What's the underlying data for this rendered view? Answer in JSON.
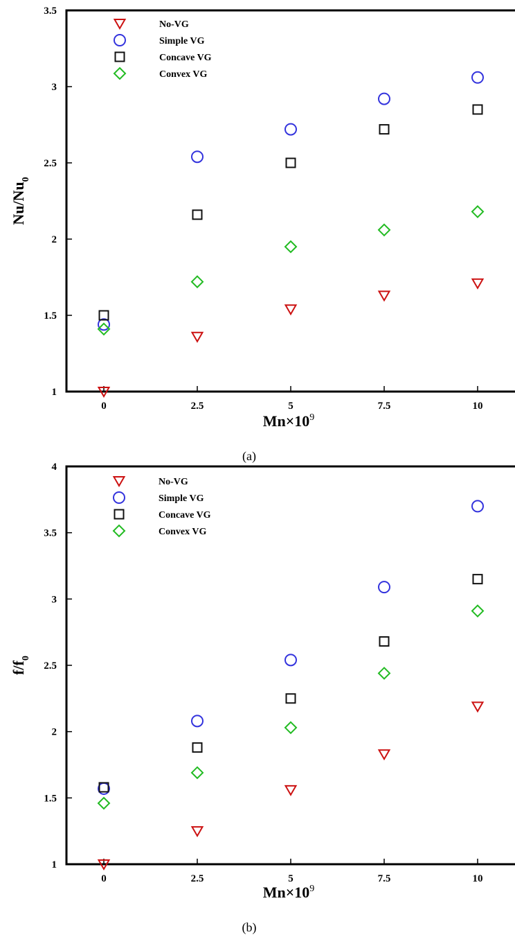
{
  "chart_data": [
    {
      "type": "scatter",
      "panel": "(a)",
      "xlabel_main": "Mn×10",
      "xlabel_sup": "9",
      "ylabel_main": "Nu/Nu",
      "ylabel_sub": "0",
      "xlim": [
        -1,
        11
      ],
      "ylim": [
        1,
        3.5
      ],
      "x_ticks": [
        0,
        2.5,
        5,
        7.5,
        10
      ],
      "x_tick_labels": [
        "0",
        "2.5",
        "5",
        "7.5",
        "10"
      ],
      "y_ticks": [
        1,
        1.5,
        2,
        2.5,
        3,
        3.5
      ],
      "y_tick_labels": [
        "1",
        "1.5",
        "2",
        "2.5",
        "3",
        "3.5"
      ],
      "legend_position": "top-left",
      "x": [
        0,
        2.5,
        5,
        7.5,
        10
      ],
      "series": [
        {
          "name": "No-VG",
          "marker": "triangle-down",
          "color": "#cc1111",
          "values": [
            1.0,
            1.36,
            1.54,
            1.63,
            1.71
          ]
        },
        {
          "name": "Simple VG",
          "marker": "circle",
          "color": "#3333dd",
          "values": [
            1.44,
            2.54,
            2.72,
            2.92,
            3.06
          ]
        },
        {
          "name": "Concave VG",
          "marker": "square",
          "color": "#111111",
          "values": [
            1.5,
            2.16,
            2.5,
            2.72,
            2.85
          ]
        },
        {
          "name": "Convex VG",
          "marker": "diamond",
          "color": "#22bb22",
          "values": [
            1.41,
            1.72,
            1.95,
            2.06,
            2.18
          ]
        }
      ]
    },
    {
      "type": "scatter",
      "panel": "(b)",
      "xlabel_main": "Mn×10",
      "xlabel_sup": "9",
      "ylabel_main": "f/f",
      "ylabel_sub": "0",
      "xlim": [
        -1,
        11
      ],
      "ylim": [
        1,
        4
      ],
      "x_ticks": [
        0,
        2.5,
        5,
        7.5,
        10
      ],
      "x_tick_labels": [
        "0",
        "2.5",
        "5",
        "7.5",
        "10"
      ],
      "y_ticks": [
        1,
        1.5,
        2,
        2.5,
        3,
        3.5,
        4
      ],
      "y_tick_labels": [
        "1",
        "1.5",
        "2",
        "2.5",
        "3",
        "3.5",
        "4"
      ],
      "legend_position": "top-left",
      "x": [
        0,
        2.5,
        5,
        7.5,
        10
      ],
      "series": [
        {
          "name": "No-VG",
          "marker": "triangle-down",
          "color": "#cc1111",
          "values": [
            1.0,
            1.25,
            1.56,
            1.83,
            2.19
          ]
        },
        {
          "name": "Simple VG",
          "marker": "circle",
          "color": "#3333dd",
          "values": [
            1.57,
            2.08,
            2.54,
            3.09,
            3.7
          ]
        },
        {
          "name": "Concave VG",
          "marker": "square",
          "color": "#111111",
          "values": [
            1.58,
            1.88,
            2.25,
            2.68,
            3.15
          ]
        },
        {
          "name": "Convex VG",
          "marker": "diamond",
          "color": "#22bb22",
          "values": [
            1.46,
            1.69,
            2.03,
            2.44,
            2.91
          ]
        }
      ]
    }
  ]
}
